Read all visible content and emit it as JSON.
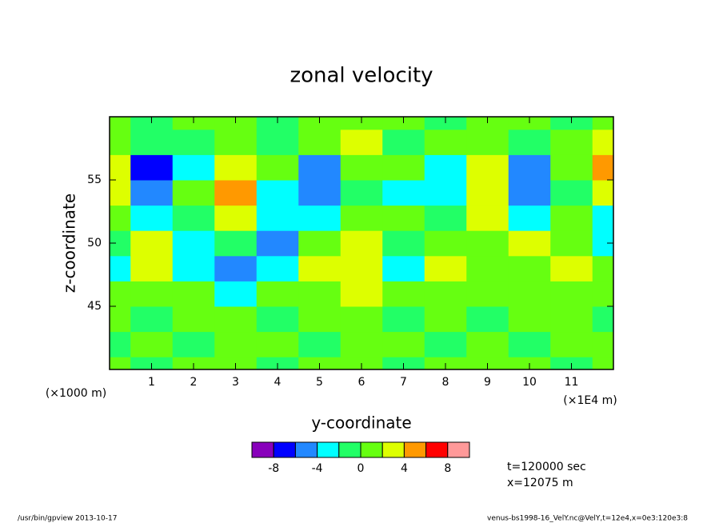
{
  "chart_data": {
    "type": "contour",
    "title": "zonal velocity",
    "x_label": "y-coordinate",
    "y_label": "z-coordinate",
    "x_unit_left": "(×1000 m)",
    "x_unit_right": "(×1E4 m)",
    "x": [
      0,
      1,
      2,
      3,
      4,
      5,
      6,
      7,
      8,
      9,
      10,
      11,
      12
    ],
    "y": [
      40,
      42,
      44,
      46,
      48,
      50,
      52,
      54,
      56,
      58,
      60
    ],
    "z": [
      [
        1,
        -1,
        1,
        1,
        -1,
        1,
        1,
        -1,
        1,
        1,
        1,
        -1,
        1
      ],
      [
        -1,
        1,
        -1,
        1,
        1,
        -1,
        1,
        1,
        -1,
        1,
        -1,
        1,
        1
      ],
      [
        1,
        -1,
        1,
        1,
        -1,
        1,
        1,
        -1,
        1,
        -1,
        1,
        1,
        -1
      ],
      [
        1,
        1,
        1,
        -3,
        1,
        1,
        3,
        1,
        1,
        1,
        1,
        1,
        1
      ],
      [
        -3,
        3,
        -3,
        -5,
        -3,
        3,
        3,
        -3,
        3,
        1,
        1,
        3,
        1
      ],
      [
        -1,
        3,
        -3,
        -1,
        -5,
        1,
        3,
        -1,
        1,
        1,
        3,
        1,
        -3
      ],
      [
        1,
        -3,
        -1,
        3,
        -3,
        -3,
        1,
        1,
        -1,
        3,
        -3,
        1,
        -3
      ],
      [
        3,
        -5,
        1,
        5,
        -3,
        -5,
        -1,
        -3,
        -3,
        3,
        -5,
        -1,
        3
      ],
      [
        3,
        -7,
        -3,
        3,
        1,
        -5,
        1,
        1,
        -3,
        3,
        -5,
        1,
        5
      ],
      [
        1,
        -1,
        -1,
        1,
        -1,
        1,
        3,
        -1,
        1,
        1,
        -1,
        1,
        3
      ],
      [
        1,
        -1,
        1,
        1,
        -1,
        1,
        1,
        1,
        -1,
        1,
        1,
        -1,
        1
      ]
    ],
    "xlim": [
      0,
      12
    ],
    "ylim": [
      40,
      60
    ],
    "xticks": [
      1,
      2,
      3,
      4,
      5,
      6,
      7,
      8,
      9,
      10,
      11
    ],
    "yticks": [
      45,
      50,
      55
    ],
    "colorbar": {
      "levels": [
        -10,
        -8,
        -6,
        -4,
        -2,
        0,
        2,
        4,
        6,
        8,
        10
      ],
      "colors": [
        "#8800bb",
        "#0000ff",
        "#2288ff",
        "#00ffff",
        "#22ff66",
        "#66ff11",
        "#ddff00",
        "#ff9900",
        "#ff0000",
        "#ff9999"
      ],
      "ticks": [
        -8,
        -4,
        0,
        4,
        8
      ]
    },
    "annotations": [
      "t=120000 sec",
      "x=12075 m"
    ],
    "footer_left": "/usr/bin/gpview  2013-10-17",
    "footer_right": "venus-bs1998-16_VelY.nc@VelY,t=12e4,x=0e3:120e3:8"
  }
}
